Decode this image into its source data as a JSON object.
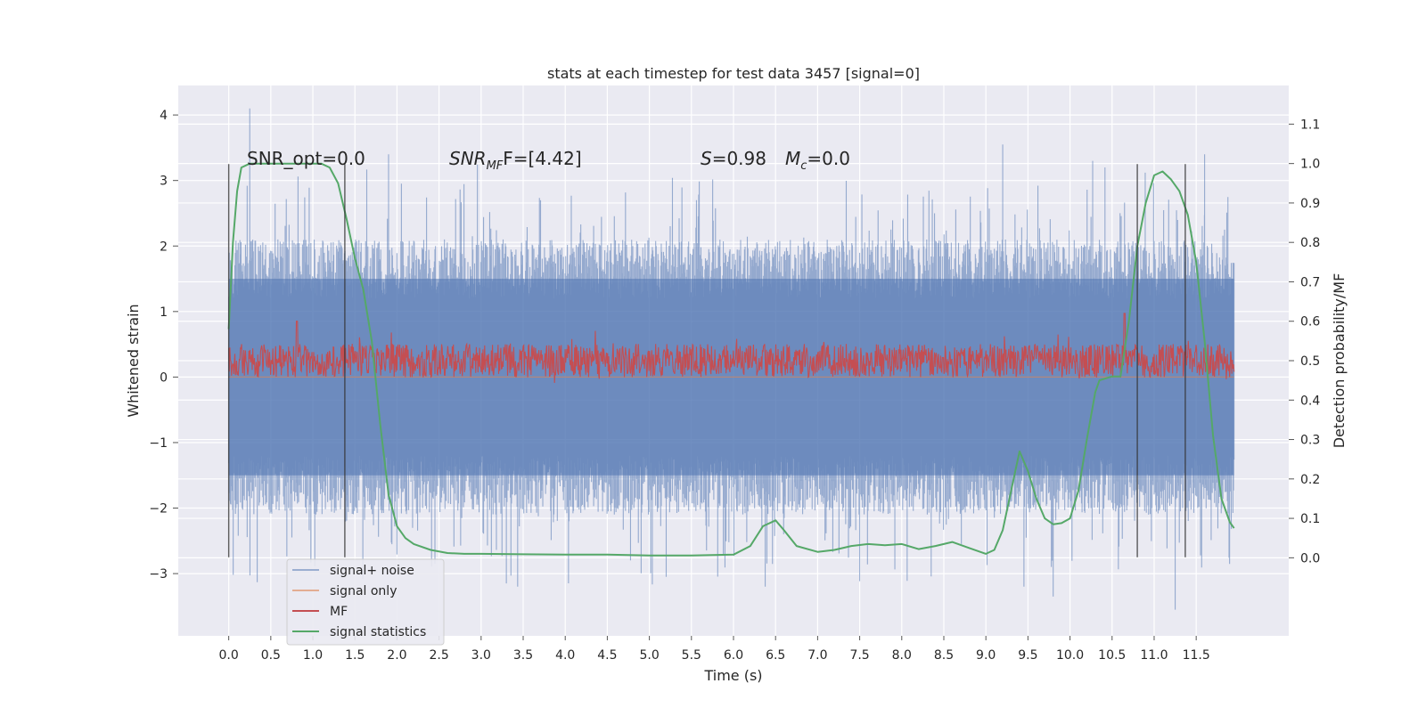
{
  "chart_data": {
    "type": "line",
    "title": "stats at each timestep for test data 3457 [signal=0]",
    "xlabel": "Time (s)",
    "ylabel_left": "Whitened strain",
    "ylabel_right": "Detection probability/MF",
    "xlim": [
      -0.6,
      12.6
    ],
    "ylim_left": [
      -3.95,
      4.45
    ],
    "ylim_right": [
      -0.198,
      1.198
    ],
    "x_ticks": [
      "0.0",
      "0.5",
      "1.0",
      "1.5",
      "2.0",
      "2.5",
      "3.0",
      "3.5",
      "4.0",
      "4.5",
      "5.0",
      "5.5",
      "6.0",
      "6.5",
      "7.0",
      "7.5",
      "8.0",
      "8.5",
      "9.0",
      "9.5",
      "10.0",
      "10.5",
      "11.0",
      "11.5"
    ],
    "y_ticks_left": [
      "4",
      "3",
      "2",
      "1",
      "0",
      "−1",
      "−2",
      "−3"
    ],
    "y_ticks_right": [
      "1.1",
      "1.0",
      "0.9",
      "0.8",
      "0.7",
      "0.6",
      "0.5",
      "0.4",
      "0.3",
      "0.2",
      "0.1",
      "0.0"
    ],
    "annotations": {
      "snr_opt": "SNR_opt=0.0",
      "snr_mf_prefix": "SNR",
      "snr_mf_sub": "MF",
      "snr_mf_suffix": "F=[4.42]",
      "s_label": "S",
      "s_value": "=0.98",
      "mc_label": "M",
      "mc_sub": "c",
      "mc_value": "=0.0"
    },
    "vertical_lines_x": [
      0.0,
      1.38,
      10.8,
      11.37
    ],
    "grid": true,
    "legend_position": "lower-left",
    "series": [
      {
        "name": "signal+ noise",
        "axis": "left",
        "color": "#4c72b0",
        "envelope": {
          "typical_range": [
            -1.5,
            1.5
          ],
          "peak_max": 4.1,
          "peak_min": -3.6
        },
        "notable_peaks": [
          [
            0.25,
            4.1
          ],
          [
            1.9,
            3.4
          ],
          [
            9.2,
            3.55
          ],
          [
            11.6,
            3.4
          ],
          [
            9.8,
            -3.35
          ],
          [
            11.25,
            -3.55
          ],
          [
            3.3,
            -3.15
          ],
          [
            5.2,
            -3.05
          ]
        ]
      },
      {
        "name": "signal only",
        "axis": "left",
        "color": "#dd8452",
        "x": [
          0.0,
          11.95
        ],
        "y": [
          0.0,
          0.0
        ]
      },
      {
        "name": "MF",
        "axis": "right",
        "color": "#c44e52",
        "baseline": 0.5,
        "band": [
          0.46,
          0.57
        ],
        "notable_peaks": [
          [
            0.81,
            0.6
          ],
          [
            10.65,
            0.62
          ]
        ]
      },
      {
        "name": "signal statistics",
        "axis": "right",
        "color": "#55a868",
        "x": [
          0.0,
          0.05,
          0.1,
          0.15,
          0.25,
          0.4,
          0.6,
          0.8,
          1.0,
          1.1,
          1.2,
          1.3,
          1.4,
          1.5,
          1.6,
          1.7,
          1.8,
          1.9,
          2.0,
          2.1,
          2.2,
          2.4,
          2.6,
          2.8,
          3.0,
          3.5,
          4.0,
          4.5,
          5.0,
          5.5,
          6.0,
          6.2,
          6.35,
          6.5,
          6.6,
          6.75,
          7.0,
          7.2,
          7.4,
          7.6,
          7.8,
          8.0,
          8.2,
          8.4,
          8.6,
          8.8,
          9.0,
          9.1,
          9.2,
          9.3,
          9.4,
          9.5,
          9.6,
          9.7,
          9.8,
          9.9,
          10.0,
          10.1,
          10.2,
          10.3,
          10.35,
          10.5,
          10.6,
          10.7,
          10.8,
          10.9,
          11.0,
          11.1,
          11.2,
          11.3,
          11.4,
          11.5,
          11.6,
          11.7,
          11.8,
          11.9,
          11.95
        ],
        "y": [
          0.58,
          0.8,
          0.93,
          0.99,
          1.0,
          1.0,
          1.0,
          1.0,
          1.0,
          1.0,
          0.99,
          0.95,
          0.86,
          0.76,
          0.68,
          0.55,
          0.34,
          0.16,
          0.08,
          0.05,
          0.035,
          0.02,
          0.012,
          0.01,
          0.01,
          0.009,
          0.008,
          0.008,
          0.006,
          0.006,
          0.008,
          0.03,
          0.08,
          0.095,
          0.07,
          0.03,
          0.015,
          0.02,
          0.03,
          0.035,
          0.032,
          0.035,
          0.022,
          0.03,
          0.04,
          0.025,
          0.01,
          0.02,
          0.07,
          0.17,
          0.27,
          0.22,
          0.15,
          0.1,
          0.085,
          0.088,
          0.1,
          0.17,
          0.3,
          0.42,
          0.45,
          0.46,
          0.46,
          0.6,
          0.79,
          0.9,
          0.97,
          0.98,
          0.96,
          0.93,
          0.87,
          0.75,
          0.55,
          0.31,
          0.15,
          0.09,
          0.075
        ]
      }
    ]
  }
}
